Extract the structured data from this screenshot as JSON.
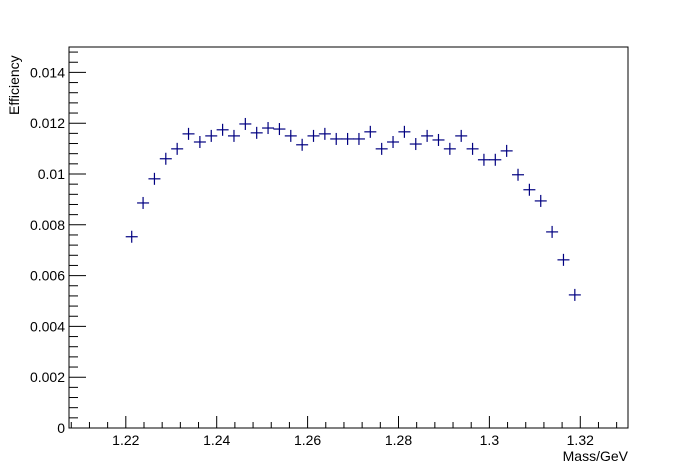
{
  "chart_data": {
    "type": "scatter",
    "title": "",
    "xlabel": "Mass/GeV",
    "ylabel": "Efficiency",
    "xlim": [
      1.2075,
      1.3305
    ],
    "ylim": [
      0,
      0.015
    ],
    "x_ticks": [
      1.22,
      1.24,
      1.26,
      1.28,
      1.3,
      1.32
    ],
    "x_tick_labels": [
      "1.22",
      "1.24",
      "1.26",
      "1.28",
      "1.3",
      "1.32"
    ],
    "y_ticks": [
      0,
      0.002,
      0.004,
      0.006,
      0.008,
      0.01,
      0.012,
      0.014
    ],
    "y_tick_labels": [
      "0",
      "0.002",
      "0.004",
      "0.006",
      "0.008",
      "0.01",
      "0.012",
      "0.014"
    ],
    "grid": false,
    "marker": "cross",
    "marker_color": "#000080",
    "series": [
      {
        "x": [
          1.2213,
          1.2238,
          1.2263,
          1.2288,
          1.2313,
          1.2338,
          1.2363,
          1.2388,
          1.2413,
          1.2438,
          1.2463,
          1.2488,
          1.2513,
          1.2538,
          1.2563,
          1.2588,
          1.2613,
          1.2638,
          1.2663,
          1.2688,
          1.2713,
          1.2738,
          1.2763,
          1.2788,
          1.2813,
          1.2838,
          1.2863,
          1.2888,
          1.2913,
          1.2938,
          1.2963,
          1.2988,
          1.3013,
          1.3038,
          1.3063,
          1.3088,
          1.3113,
          1.3138,
          1.3163,
          1.3188
        ],
        "y": [
          0.00753,
          0.00886,
          0.00981,
          0.0106,
          0.01099,
          0.01158,
          0.01126,
          0.0115,
          0.01174,
          0.0115,
          0.01197,
          0.01162,
          0.01181,
          0.01177,
          0.0115,
          0.01115,
          0.0115,
          0.01158,
          0.01138,
          0.01138,
          0.01138,
          0.01166,
          0.01099,
          0.01126,
          0.01166,
          0.01118,
          0.0115,
          0.01134,
          0.01099,
          0.0115,
          0.01099,
          0.01056,
          0.01056,
          0.01091,
          0.00997,
          0.00938,
          0.00894,
          0.00772,
          0.00662,
          0.00524
        ]
      }
    ]
  }
}
